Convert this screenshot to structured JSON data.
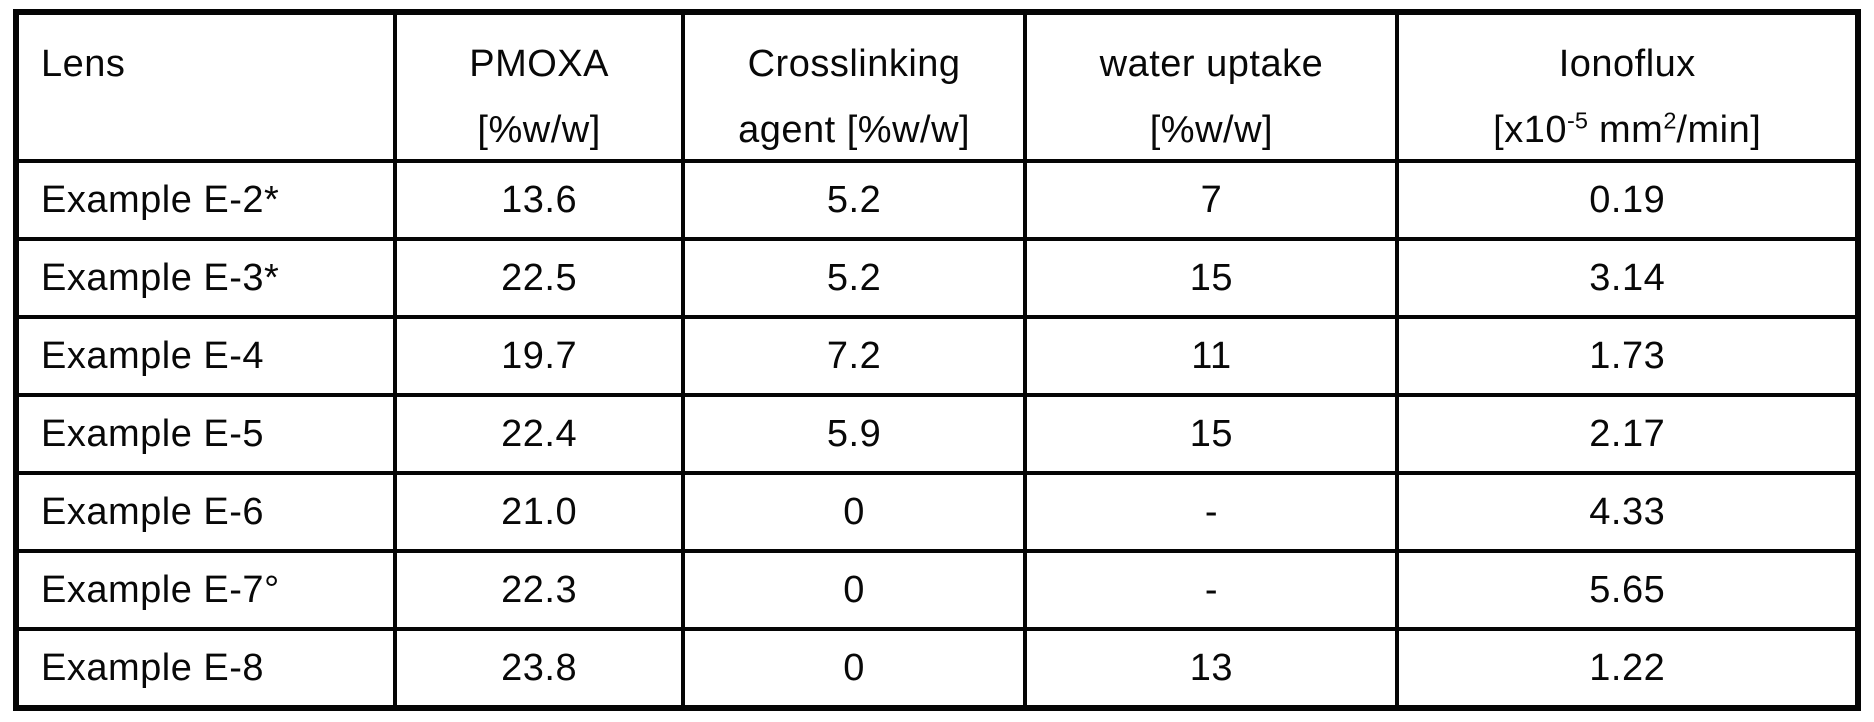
{
  "colors": {
    "ink": "#0b0b0b",
    "paper": "#ffffff"
  },
  "table": {
    "columns": [
      {
        "id": "lens",
        "line1": "Lens",
        "line2": ""
      },
      {
        "id": "pmoxa",
        "line1": "PMOXA",
        "line2": "[%w/w]"
      },
      {
        "id": "crosslinking",
        "line1": "Crosslinking",
        "line2": "agent [%w/w]"
      },
      {
        "id": "water_uptake",
        "line1": "water uptake",
        "line2": "[%w/w]"
      },
      {
        "id": "ionoflux",
        "line1": "Ionoflux",
        "unit": {
          "open": "[x10",
          "exp": "-5",
          "mid": " mm",
          "sq": "2",
          "close": "/min]"
        }
      }
    ],
    "rows": [
      [
        "Example E-2*",
        "13.6",
        "5.2",
        "7",
        "0.19"
      ],
      [
        "Example E-3*",
        "22.5",
        "5.2",
        "15",
        "3.14"
      ],
      [
        "Example E-4",
        "19.7",
        "7.2",
        "11",
        "1.73"
      ],
      [
        "Example E-5",
        "22.4",
        "5.9",
        "15",
        "2.17"
      ],
      [
        "Example E-6",
        "21.0",
        "0",
        "-",
        "4.33"
      ],
      [
        "Example E-7°",
        "22.3",
        "0",
        "-",
        "5.65"
      ],
      [
        "Example E-8",
        "23.8",
        "0",
        "13",
        "1.22"
      ]
    ]
  }
}
